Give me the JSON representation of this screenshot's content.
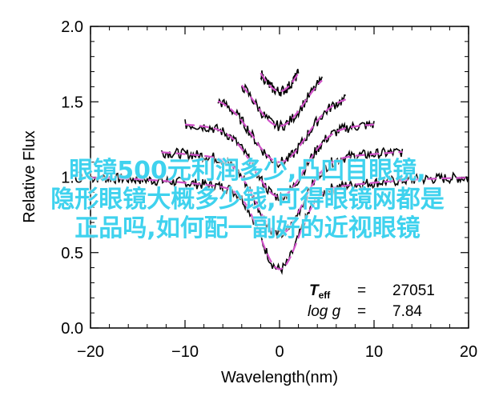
{
  "chart_data": {
    "type": "line",
    "title": "",
    "xlabel": "Wavelength(nm)",
    "ylabel": "Relative Flux",
    "xlim": [
      -20,
      20
    ],
    "ylim": [
      0.0,
      2.0
    ],
    "xticks": [
      "−20",
      "−10",
      "0",
      "10",
      "20"
    ],
    "yticks": [
      "0.0",
      "0.5",
      "1.0",
      "1.5",
      "2.0"
    ],
    "series": [
      {
        "offset": 0.0,
        "x_range": [
          -20,
          20
        ],
        "depth": 0.53,
        "width": 2.0
      },
      {
        "offset": 0.2,
        "x_range": [
          -12.5,
          13
        ],
        "depth": 0.5,
        "width": 2.4
      },
      {
        "offset": 0.4,
        "x_range": [
          -10,
          10
        ],
        "depth": 0.45,
        "width": 2.6
      },
      {
        "offset": 0.6,
        "x_range": [
          -6.5,
          7
        ],
        "depth": 0.42,
        "width": 2.8
      },
      {
        "offset": 0.8,
        "x_range": [
          -4,
          4.5
        ],
        "depth": 0.38,
        "width": 2.6
      },
      {
        "offset": 1.0,
        "x_range": [
          -2,
          2
        ],
        "depth": 0.35,
        "width": 2.2
      }
    ],
    "colors": {
      "observed": "#000000",
      "model": "#d050c8"
    },
    "annotation": {
      "teff_label": "T",
      "teff_sub": "eff",
      "teff_value": "27051",
      "logg_label": "log g",
      "logg_value": "7.84",
      "equals": "="
    }
  },
  "overlay_text": [
    "眼镜500元利润多少,凸凹目眼镜,",
    "隐形眼镜大概多少钱,可得眼镜网都是",
    "正品吗,如何配一副好的近视眼镜"
  ]
}
